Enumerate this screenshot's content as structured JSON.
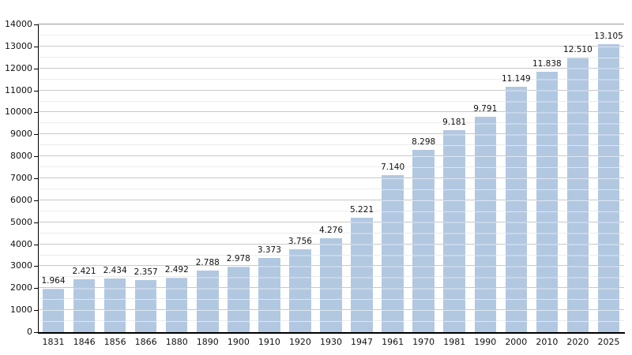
{
  "chart_data": {
    "type": "bar",
    "title": "",
    "xlabel": "",
    "ylabel": "",
    "categories": [
      "1831",
      "1846",
      "1856",
      "1866",
      "1880",
      "1890",
      "1900",
      "1910",
      "1920",
      "1930",
      "1947",
      "1961",
      "1970",
      "1981",
      "1990",
      "2000",
      "2010",
      "2020",
      "2025"
    ],
    "values": [
      1964,
      2421,
      2434,
      2357,
      2492,
      2788,
      2978,
      3373,
      3756,
      4276,
      5221,
      7140,
      8298,
      9181,
      9791,
      11149,
      11838,
      12510,
      13105
    ],
    "value_labels": [
      "1.964",
      "2.421",
      "2.434",
      "2.357",
      "2.492",
      "2.788",
      "2.978",
      "3.373",
      "3.756",
      "4.276",
      "5.221",
      "7.140",
      "8.298",
      "9.181",
      "9.791",
      "11.149",
      "11.838",
      "12.510",
      "13.105"
    ],
    "ylim": [
      0,
      14000
    ],
    "ytick_step": 1000,
    "minor_gridline_step": 500,
    "grid": true,
    "legend": "none",
    "colors": {
      "bar_fill": "#b2c8e1",
      "major_gridline": "#c9c9c9",
      "minor_gridline": "#ececec",
      "top_gridline": "#999999",
      "axis": "#000000",
      "text": "#111111",
      "background": "#ffffff"
    }
  }
}
